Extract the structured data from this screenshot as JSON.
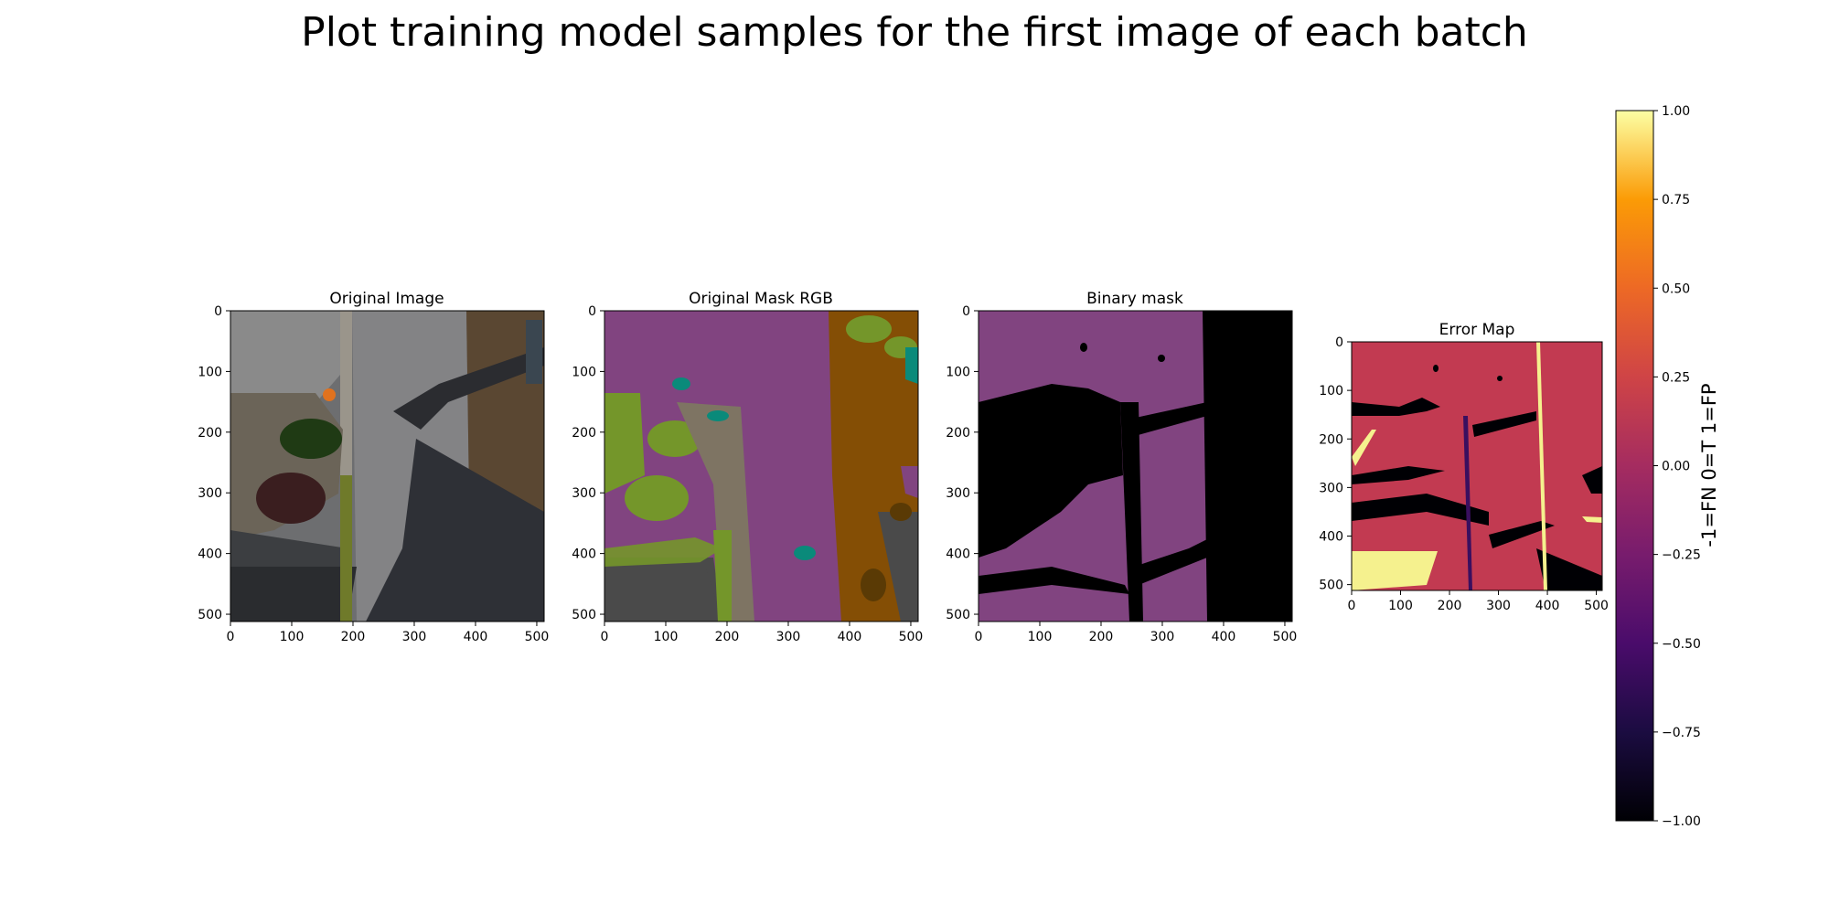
{
  "suptitle": "Plot training model samples for the first image of each batch",
  "chart_data": {
    "type": "heatmap",
    "panels": [
      {
        "title": "Original Image",
        "xticks": [
          0,
          100,
          200,
          300,
          400,
          500
        ],
        "yticks": [
          0,
          100,
          200,
          300,
          400,
          500
        ],
        "xlim": [
          0,
          512
        ],
        "ylim": [
          512,
          0
        ]
      },
      {
        "title": "Original Mask RGB",
        "xticks": [
          0,
          100,
          200,
          300,
          400,
          500
        ],
        "yticks": [
          0,
          100,
          200,
          300,
          400,
          500
        ],
        "xlim": [
          0,
          512
        ],
        "ylim": [
          512,
          0
        ]
      },
      {
        "title": "Binary mask",
        "xticks": [
          0,
          100,
          200,
          300,
          400,
          500
        ],
        "yticks": [
          0,
          100,
          200,
          300,
          400,
          500
        ],
        "xlim": [
          0,
          512
        ],
        "ylim": [
          512,
          0
        ]
      },
      {
        "title": "Error Map",
        "xticks": [
          0,
          100,
          200,
          300,
          400,
          500
        ],
        "yticks": [
          0,
          100,
          200,
          300,
          400,
          500
        ],
        "xlim": [
          0,
          512
        ],
        "ylim": [
          512,
          0
        ]
      }
    ],
    "colorbar": {
      "label": "-1=FN 0=T 1=FP",
      "colormap": "inferno",
      "range": [
        -1.0,
        1.0
      ],
      "ticks": [
        1.0,
        0.75,
        0.5,
        0.25,
        0.0,
        -0.25,
        -0.5,
        -0.75,
        -1.0
      ],
      "tick_labels": [
        "1.00",
        "0.75",
        "0.50",
        "0.25",
        "0.00",
        "−0.25",
        "−0.50",
        "−0.75",
        "−1.00"
      ]
    },
    "colors": {
      "mask_purple": "#814480",
      "mask_green": "#74962a",
      "mask_brown": "#844e05",
      "mask_teal": "#0a8a7a",
      "mask_taupe": "#7e7463",
      "mask_dark": "#4a4a4a",
      "binary_purple": "#814480",
      "error_true": "#c23a51",
      "error_fn": "#000004",
      "error_fp": "#f5f18e"
    }
  }
}
